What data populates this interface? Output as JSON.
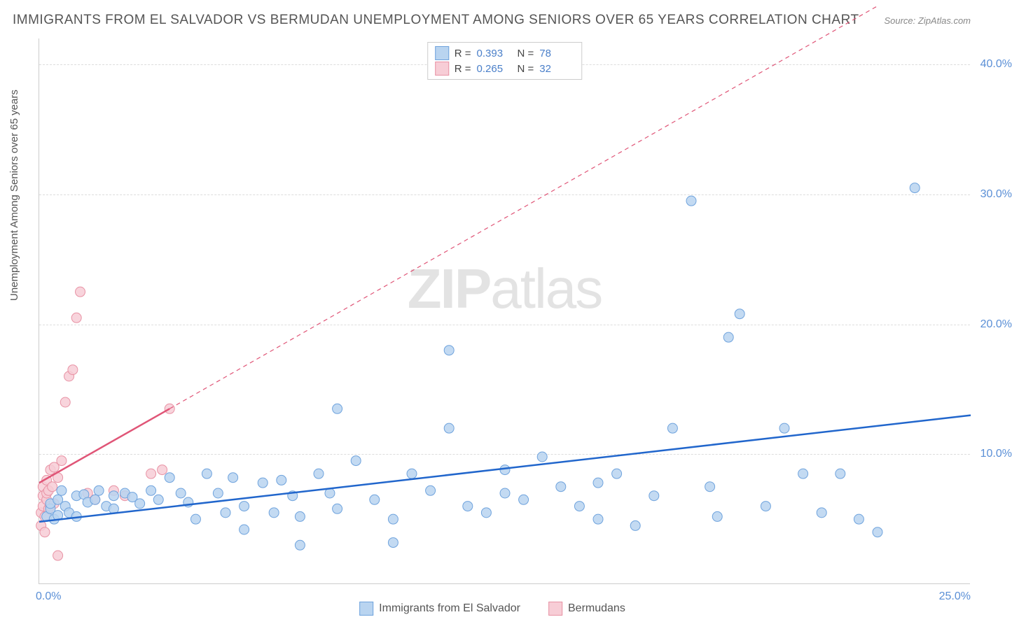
{
  "title": "IMMIGRANTS FROM EL SALVADOR VS BERMUDAN UNEMPLOYMENT AMONG SENIORS OVER 65 YEARS CORRELATION CHART",
  "source": "Source: ZipAtlas.com",
  "ylabel": "Unemployment Among Seniors over 65 years",
  "watermark_a": "ZIP",
  "watermark_b": "atlas",
  "chart": {
    "type": "scatter",
    "xlim": [
      0.0,
      25.0
    ],
    "ylim": [
      0.0,
      42.0
    ],
    "yticks": [
      10.0,
      20.0,
      30.0,
      40.0
    ],
    "ytick_labels": [
      "10.0%",
      "20.0%",
      "30.0%",
      "40.0%"
    ],
    "xticks": [
      0.0,
      25.0
    ],
    "xtick_labels": [
      "0.0%",
      "25.0%"
    ],
    "grid_color": "#dddddd",
    "background_color": "#ffffff",
    "marker_radius": 7,
    "marker_stroke_width": 1,
    "line_width": 2.5,
    "label_fontsize": 15,
    "tick_fontsize": 16,
    "tick_color": "#5a8fd6",
    "series": [
      {
        "name": "Immigrants from El Salvador",
        "color_fill": "#b9d4f0",
        "color_stroke": "#6fa3dd",
        "line_color": "#2166cc",
        "R": "0.393",
        "N": "78",
        "trend": {
          "x1": 0.0,
          "y1": 4.8,
          "x2": 25.0,
          "y2": 13.0,
          "dashed": false
        },
        "points": [
          [
            0.2,
            5.2
          ],
          [
            0.3,
            5.8
          ],
          [
            0.3,
            6.2
          ],
          [
            0.4,
            5.0
          ],
          [
            0.5,
            6.5
          ],
          [
            0.5,
            5.3
          ],
          [
            0.6,
            7.2
          ],
          [
            0.7,
            6.0
          ],
          [
            0.8,
            5.5
          ],
          [
            1.0,
            6.8
          ],
          [
            1.0,
            5.2
          ],
          [
            1.2,
            6.9
          ],
          [
            1.3,
            6.3
          ],
          [
            1.5,
            6.5
          ],
          [
            1.6,
            7.2
          ],
          [
            1.8,
            6.0
          ],
          [
            2.0,
            6.8
          ],
          [
            2.0,
            5.8
          ],
          [
            2.3,
            7.0
          ],
          [
            2.5,
            6.7
          ],
          [
            2.7,
            6.2
          ],
          [
            3.0,
            7.2
          ],
          [
            3.2,
            6.5
          ],
          [
            3.5,
            8.2
          ],
          [
            3.8,
            7.0
          ],
          [
            4.0,
            6.3
          ],
          [
            4.2,
            5.0
          ],
          [
            4.5,
            8.5
          ],
          [
            4.8,
            7.0
          ],
          [
            5.0,
            5.5
          ],
          [
            5.2,
            8.2
          ],
          [
            5.5,
            6.0
          ],
          [
            5.5,
            4.2
          ],
          [
            6.0,
            7.8
          ],
          [
            6.3,
            5.5
          ],
          [
            6.5,
            8.0
          ],
          [
            6.8,
            6.8
          ],
          [
            7.0,
            5.2
          ],
          [
            7.0,
            3.0
          ],
          [
            7.5,
            8.5
          ],
          [
            7.8,
            7.0
          ],
          [
            8.0,
            5.8
          ],
          [
            8.0,
            13.5
          ],
          [
            8.5,
            9.5
          ],
          [
            9.0,
            6.5
          ],
          [
            9.5,
            5.0
          ],
          [
            9.5,
            3.2
          ],
          [
            10.0,
            8.5
          ],
          [
            10.5,
            7.2
          ],
          [
            11.0,
            12.0
          ],
          [
            11.0,
            18.0
          ],
          [
            11.5,
            6.0
          ],
          [
            12.0,
            5.5
          ],
          [
            12.5,
            8.8
          ],
          [
            12.5,
            7.0
          ],
          [
            13.0,
            6.5
          ],
          [
            13.5,
            9.8
          ],
          [
            14.0,
            7.5
          ],
          [
            14.5,
            6.0
          ],
          [
            15.0,
            7.8
          ],
          [
            15.0,
            5.0
          ],
          [
            15.5,
            8.5
          ],
          [
            16.0,
            4.5
          ],
          [
            16.5,
            6.8
          ],
          [
            17.0,
            12.0
          ],
          [
            17.5,
            29.5
          ],
          [
            18.0,
            7.5
          ],
          [
            18.2,
            5.2
          ],
          [
            18.5,
            19.0
          ],
          [
            18.8,
            20.8
          ],
          [
            19.5,
            6.0
          ],
          [
            20.0,
            12.0
          ],
          [
            20.5,
            8.5
          ],
          [
            21.0,
            5.5
          ],
          [
            21.5,
            8.5
          ],
          [
            22.0,
            5.0
          ],
          [
            22.5,
            4.0
          ],
          [
            23.5,
            30.5
          ]
        ]
      },
      {
        "name": "Bermudans",
        "color_fill": "#f7cdd6",
        "color_stroke": "#e892a4",
        "line_color": "#e05577",
        "R": "0.265",
        "N": "32",
        "trend": {
          "x1": 0.0,
          "y1": 7.8,
          "x2": 3.5,
          "y2": 13.5,
          "dashed": false
        },
        "trend_ext": {
          "x1": 3.5,
          "y1": 13.5,
          "x2": 22.5,
          "y2": 44.5,
          "dashed": true
        },
        "points": [
          [
            0.05,
            4.5
          ],
          [
            0.05,
            5.5
          ],
          [
            0.1,
            6.0
          ],
          [
            0.1,
            6.8
          ],
          [
            0.1,
            7.5
          ],
          [
            0.15,
            4.0
          ],
          [
            0.15,
            5.2
          ],
          [
            0.2,
            6.5
          ],
          [
            0.2,
            7.0
          ],
          [
            0.2,
            8.0
          ],
          [
            0.25,
            5.8
          ],
          [
            0.25,
            7.2
          ],
          [
            0.3,
            6.0
          ],
          [
            0.3,
            8.8
          ],
          [
            0.35,
            7.5
          ],
          [
            0.4,
            6.2
          ],
          [
            0.4,
            9.0
          ],
          [
            0.5,
            8.2
          ],
          [
            0.5,
            2.2
          ],
          [
            0.6,
            9.5
          ],
          [
            0.7,
            14.0
          ],
          [
            0.8,
            16.0
          ],
          [
            0.9,
            16.5
          ],
          [
            1.0,
            20.5
          ],
          [
            1.1,
            22.5
          ],
          [
            1.3,
            7.0
          ],
          [
            1.5,
            6.5
          ],
          [
            2.0,
            7.2
          ],
          [
            2.3,
            6.8
          ],
          [
            3.0,
            8.5
          ],
          [
            3.3,
            8.8
          ],
          [
            3.5,
            13.5
          ]
        ]
      }
    ]
  },
  "stats_labels": {
    "R": "R =",
    "N": "N ="
  },
  "legend": {
    "series1": "Immigrants from El Salvador",
    "series2": "Bermudans"
  }
}
